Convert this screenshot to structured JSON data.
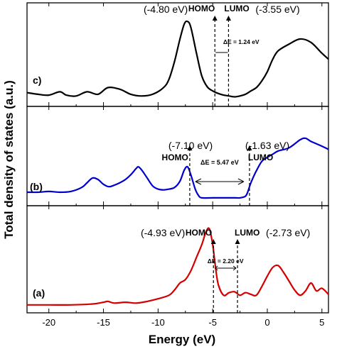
{
  "chart_data": {
    "type": "line",
    "xlabel": "Energy (eV)",
    "ylabel": "Total density of states (a.u.)",
    "xlim": [
      -22,
      5.6
    ],
    "xticks": [
      -20,
      -15,
      -10,
      -5,
      0,
      5
    ],
    "xtick_labels": [
      "-20",
      "-15",
      "-10",
      "-5",
      "0",
      "5"
    ],
    "panels": [
      {
        "label": "c)",
        "color": "#000000",
        "ylim": [
          0,
          1
        ],
        "x": [
          -22,
          -21,
          -20,
          -19,
          -18.4,
          -17.5,
          -16.5,
          -15.5,
          -14.6,
          -13.5,
          -12.5,
          -11.5,
          -10.5,
          -9.5,
          -9,
          -8.5,
          -8,
          -7.6,
          -7.3,
          -7,
          -6.5,
          -6,
          -5.5,
          -5,
          -4.5,
          -4,
          -3.5,
          -3,
          -2.5,
          -2,
          -1.5,
          -1,
          -0.5,
          0,
          0.5,
          1,
          2,
          3,
          4,
          5,
          5.6
        ],
        "y": [
          0.08,
          0.06,
          0.05,
          0.09,
          0.05,
          0.04,
          0.09,
          0.06,
          0.14,
          0.12,
          0.06,
          0.04,
          0.06,
          0.14,
          0.24,
          0.45,
          0.72,
          0.9,
          0.93,
          0.86,
          0.56,
          0.28,
          0.15,
          0.1,
          0.07,
          0.05,
          0.04,
          0.03,
          0.04,
          0.06,
          0.1,
          0.14,
          0.22,
          0.33,
          0.48,
          0.58,
          0.66,
          0.72,
          0.68,
          0.55,
          0.48
        ],
        "homo_x": -4.8,
        "lumo_x": -3.55,
        "homo_label": "HOMO",
        "lumo_label": "LUMO",
        "homo_value": "(-4.80 eV)",
        "lumo_value": "(-3.55 eV)",
        "gap_label": "ΔE = 1.24 eV"
      },
      {
        "label": "(b)",
        "color": "#0000cc",
        "ylim": [
          0,
          1
        ],
        "x": [
          -22,
          -21,
          -20,
          -19,
          -18,
          -17,
          -16.5,
          -16,
          -15.5,
          -15,
          -14.5,
          -14,
          -13.5,
          -13,
          -12.5,
          -12,
          -11.8,
          -11.5,
          -11,
          -10.5,
          -10,
          -9.5,
          -9,
          -8.5,
          -8,
          -7.6,
          -7.3,
          -7,
          -6.6,
          -6.3,
          -6,
          -5,
          -4,
          -3,
          -2.5,
          -2,
          -1.8,
          -1.5,
          -1,
          -0.5,
          0,
          0.5,
          1,
          2,
          3,
          3.5,
          4,
          5,
          5.6
        ],
        "y": [
          0.08,
          0.08,
          0.09,
          0.08,
          0.09,
          0.14,
          0.2,
          0.26,
          0.24,
          0.18,
          0.15,
          0.17,
          0.2,
          0.24,
          0.3,
          0.38,
          0.4,
          0.36,
          0.26,
          0.16,
          0.12,
          0.11,
          0.12,
          0.14,
          0.22,
          0.36,
          0.4,
          0.3,
          0.12,
          0.04,
          0.01,
          0.01,
          0.01,
          0.01,
          0.01,
          0.03,
          0.08,
          0.2,
          0.35,
          0.47,
          0.52,
          0.56,
          0.6,
          0.64,
          0.74,
          0.76,
          0.72,
          0.66,
          0.62
        ],
        "homo_x": -7.1,
        "lumo_x": -1.63,
        "homo_label": "HOMO",
        "lumo_label": "LUMO",
        "homo_value": "(-7.10 eV)",
        "lumo_value": "(-1.63 eV)",
        "gap_label": "ΔE = 5.47 eV"
      },
      {
        "label": "(a)",
        "color": "#d40000",
        "ylim": [
          0,
          1
        ],
        "x": [
          -22,
          -20,
          -18,
          -16,
          -15,
          -14.6,
          -14,
          -13,
          -12,
          -11,
          -10,
          -9,
          -8.5,
          -8,
          -7.5,
          -7,
          -6.5,
          -6,
          -5.6,
          -5.3,
          -5,
          -4.8,
          -4.5,
          -4,
          -3.5,
          -3,
          -2.5,
          -2,
          -1.5,
          -1,
          -0.5,
          0,
          0.5,
          1,
          1.5,
          2,
          2.5,
          3,
          3.5,
          4,
          4.5,
          5,
          5.6
        ],
        "y": [
          0.01,
          0.01,
          0.01,
          0.02,
          0.04,
          0.05,
          0.03,
          0.04,
          0.03,
          0.05,
          0.08,
          0.12,
          0.18,
          0.26,
          0.3,
          0.4,
          0.55,
          0.7,
          0.85,
          0.88,
          0.7,
          0.5,
          0.25,
          0.12,
          0.15,
          0.16,
          0.12,
          0.15,
          0.13,
          0.12,
          0.22,
          0.34,
          0.44,
          0.46,
          0.38,
          0.28,
          0.18,
          0.12,
          0.17,
          0.26,
          0.17,
          0.2,
          0.13
        ],
        "homo_x": -4.93,
        "lumo_x": -2.73,
        "homo_label": "HOMO",
        "lumo_label": "LUMO",
        "homo_value": "(-4.93 eV)",
        "lumo_value": "(-2.73 eV)",
        "gap_label": "ΔE = 2.20 eV"
      }
    ]
  }
}
